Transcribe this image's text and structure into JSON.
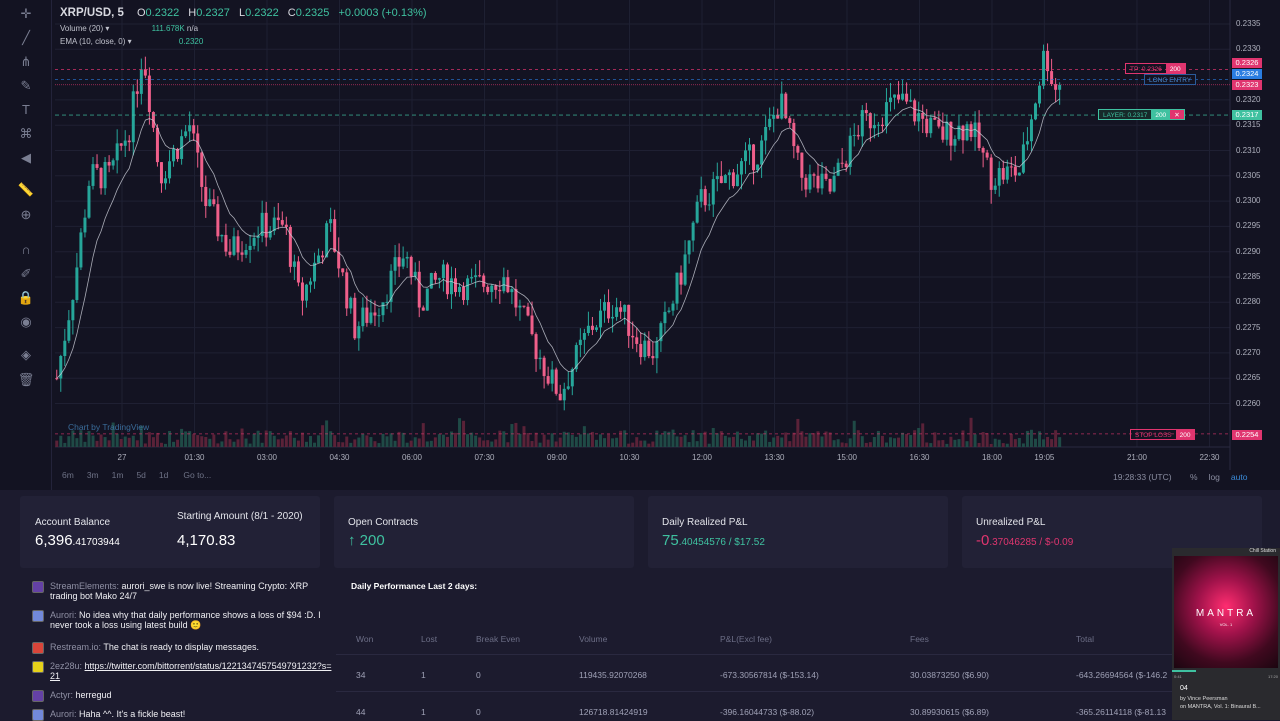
{
  "header": {
    "symbol": "XRP/USD, 5",
    "open_label": "O",
    "open": "0.2322",
    "high_label": "H",
    "high": "0.2327",
    "low_label": "L",
    "low": "0.2322",
    "close_label": "C",
    "close": "0.2325",
    "change": "+0.0003 (+0.13%)"
  },
  "indicators": [
    {
      "name": "Volume (20)",
      "value": "111.678K",
      "extra": "n/a"
    },
    {
      "name": "EMA (10, close, 0)",
      "value": "0.2320"
    }
  ],
  "watermark": "Chart by TradingView",
  "price_axis": [
    "0.2335",
    "0.2330",
    "0.2320",
    "0.2315",
    "0.2310",
    "0.2305",
    "0.2300",
    "0.2295",
    "0.2290",
    "0.2285",
    "0.2280",
    "0.2275",
    "0.2270",
    "0.2265",
    "0.2260"
  ],
  "price_labels": {
    "tp": "0.2326",
    "current": "0.2324",
    "entry": "0.2323",
    "layer": "0.2317",
    "stop": "0.2254"
  },
  "orders": {
    "tp": {
      "label": "TP: 0.2326",
      "qty": "200"
    },
    "long_entry": "LONG ENTRY",
    "layer": {
      "label": "LAYER: 0.2317",
      "qty": "200",
      "close": "✕"
    },
    "stop": {
      "label": "STOP LOSS",
      "qty": "200"
    }
  },
  "time_axis": [
    "27",
    "01:30",
    "03:00",
    "04:30",
    "06:00",
    "07:30",
    "09:00",
    "10:30",
    "12:00",
    "13:30",
    "15:00",
    "16:30",
    "18:00",
    "19:05",
    "21:00",
    "22:30"
  ],
  "ranges": [
    "6m",
    "3m",
    "1m",
    "5d",
    "1d"
  ],
  "goto": "Go to...",
  "clock": "19:28:33 (UTC)",
  "scale_opts": [
    "%",
    "log",
    "auto"
  ],
  "colors": {
    "up": "#26a69a",
    "down": "#ef5f8a",
    "accent": "#3fc1a0",
    "loss": "#e0356f"
  },
  "cards": {
    "balance": {
      "label": "Account Balance",
      "int": "6,396",
      "dec": ".41703944"
    },
    "starting": {
      "label": "Starting Amount (8/1 - 2020)",
      "value": "4,170.83"
    },
    "open": {
      "label": "Open Contracts",
      "arrow": "↑",
      "value": "200"
    },
    "realized": {
      "label": "Daily Realized P&L",
      "int": "75",
      "dec": ".40454576 / $17.52"
    },
    "unrealized": {
      "label": "Unrealized P&L",
      "int": "-0",
      "dec": ".37046285 / $-0.09"
    }
  },
  "chat": [
    {
      "user": "StreamElements:",
      "text": "aurori_swe is now live! Streaming Crypto: XRP trading bot Mako 24/7",
      "icon": "twitch"
    },
    {
      "user": "Aurori:",
      "text": "No idea why that daily performance shows a loss of $94 :D. I never took a loss using latest build 🙂",
      "icon": "discord"
    },
    {
      "user": "Restream.io:",
      "text": "The chat is ready to display messages.",
      "icon": "restream"
    },
    {
      "user": "2ez28u:",
      "text": "https://twitter.com/bittorrent/status/1221347457549791232?s=21",
      "icon": "emoji"
    },
    {
      "user": "Actyr:",
      "text": "herregud",
      "icon": "twitch"
    },
    {
      "user": "Aurori:",
      "text": "Haha ^^. It's a fickle beast!",
      "icon": "discord"
    }
  ],
  "performance": {
    "title": "Daily Performance Last 2 days:",
    "headers": [
      "Won",
      "Lost",
      "Break Even",
      "Volume",
      "P&L(Excl fee)",
      "Fees",
      "Total"
    ],
    "rows": [
      [
        "34",
        "1",
        "0",
        "119435.92070268",
        "-673.30567814 ($-153.14)",
        "30.03873250 ($6.90)",
        "-643.26694564 ($-146.2"
      ],
      [
        "44",
        "1",
        "0",
        "126718.81424919",
        "-396.16044733 ($-88.02)",
        "30.89930615 ($6.89)",
        "-365.26114118 ($-81.13"
      ]
    ]
  },
  "music": {
    "station": "Chill Station",
    "album_title": "MANTRA",
    "vol": "VOL. 1",
    "elapsed": "0:41",
    "duration": "17:20",
    "track": "04",
    "artist": "by Vince Peersman",
    "album": "on MANTRA, Vol. 1: Binaural B..."
  },
  "chart_data": {
    "type": "candlestick",
    "title": "XRP/USD, 5",
    "interval_minutes": 5,
    "ylim": [
      0.22514,
      0.23397
    ],
    "xlim_minutes": [
      -84,
      1400
    ],
    "keypoints_minutes_price": [
      [
        -81,
        0.2265
      ],
      [
        -58,
        0.2285
      ],
      [
        -40,
        0.2305
      ],
      [
        -15,
        0.2305
      ],
      [
        10,
        0.2315
      ],
      [
        26,
        0.233
      ],
      [
        47,
        0.2305
      ],
      [
        66,
        0.231
      ],
      [
        84,
        0.2315
      ],
      [
        103,
        0.23
      ],
      [
        134,
        0.229
      ],
      [
        171,
        0.2295
      ],
      [
        202,
        0.2295
      ],
      [
        221,
        0.228
      ],
      [
        258,
        0.2295
      ],
      [
        289,
        0.2275
      ],
      [
        320,
        0.228
      ],
      [
        351,
        0.229
      ],
      [
        370,
        0.228
      ],
      [
        395,
        0.2285
      ],
      [
        432,
        0.2283
      ],
      [
        475,
        0.2285
      ],
      [
        494,
        0.2278
      ],
      [
        531,
        0.2265
      ],
      [
        544,
        0.2262
      ],
      [
        581,
        0.2275
      ],
      [
        612,
        0.228
      ],
      [
        643,
        0.2272
      ],
      [
        662,
        0.227
      ],
      [
        693,
        0.2285
      ],
      [
        718,
        0.23
      ],
      [
        755,
        0.2305
      ],
      [
        792,
        0.231
      ],
      [
        817,
        0.232
      ],
      [
        842,
        0.2305
      ],
      [
        879,
        0.2302
      ],
      [
        916,
        0.2315
      ],
      [
        966,
        0.232
      ],
      [
        1015,
        0.2313
      ],
      [
        1053,
        0.2315
      ],
      [
        1078,
        0.2305
      ],
      [
        1115,
        0.2306
      ],
      [
        1140,
        0.2325
      ],
      [
        1146,
        0.233
      ],
      [
        1158,
        0.2322
      ],
      [
        1168,
        0.2325
      ]
    ],
    "ema_period": 10,
    "hlines": {
      "tp": 0.2326,
      "current": 0.2324,
      "entry": 0.2323,
      "layer": 0.2317,
      "stop": 0.2254
    }
  }
}
